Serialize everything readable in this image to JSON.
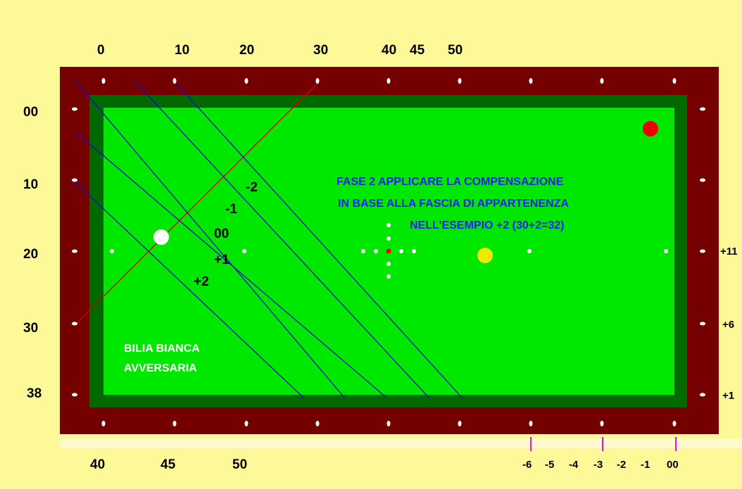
{
  "top_scale": [
    "0",
    "10",
    "20",
    "30",
    "40",
    "45",
    "50"
  ],
  "left_scale": [
    "00",
    "10",
    "20",
    "30",
    "38"
  ],
  "right_scale": [
    "+11",
    "+6",
    "+1"
  ],
  "bottom_scale": [
    "40",
    "45",
    "50"
  ],
  "compensation_scale": [
    "-6",
    "-5",
    "-4",
    "-3",
    "-2",
    "-1",
    "00"
  ],
  "zone_labels": [
    "-2",
    "-1",
    "00",
    "+1",
    "+2"
  ],
  "instructions": {
    "line1": "FASE 2 APPLICARE LA COMPENSAZIONE",
    "line2": "IN BASE ALLA FASCIA DI APPARTENENZA",
    "line3": "NELL'ESEMPIO +2 (30+2=32)"
  },
  "cue_ball_label": {
    "line1": "BILIA BIANCA",
    "line2": "AVVERSARIA"
  },
  "colors": {
    "background": "#fef998",
    "rail": "#740000",
    "cushion": "#006a00",
    "cloth": "#00e800",
    "guide_lines": "#1010c0",
    "aim_line": "#d00000",
    "white_ball": "#ffffff",
    "yellow_ball": "#f4e800",
    "red_ball": "#ee0000",
    "tick_marks": "#ff00ff"
  }
}
